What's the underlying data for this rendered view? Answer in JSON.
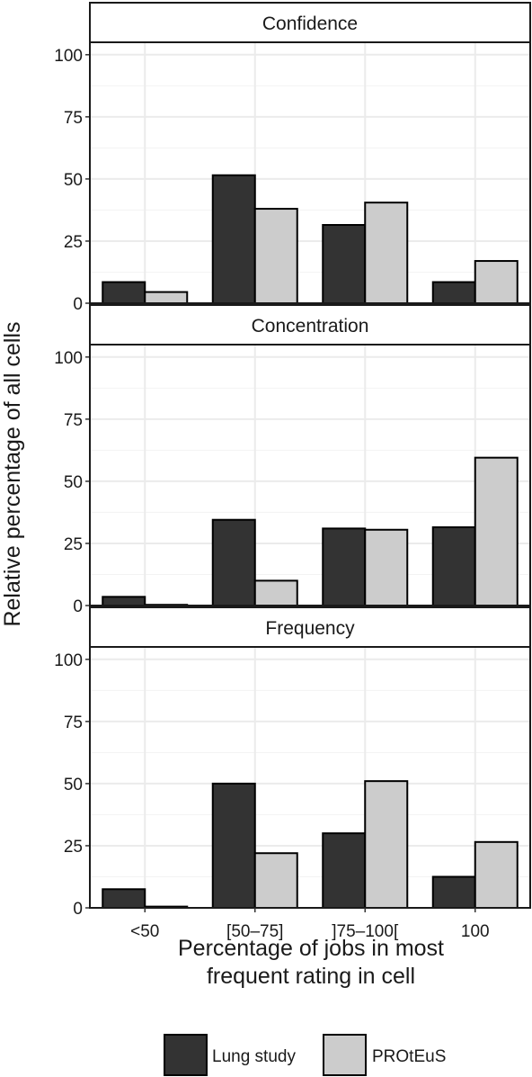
{
  "chart_data": {
    "type": "bar",
    "categories": [
      "<50",
      "[50–75]",
      "]75–100[",
      "100"
    ],
    "xlabel": "Percentage of jobs in most frequent rating in cell",
    "xlabel_lines": [
      "Percentage of jobs in most",
      "frequent rating in cell"
    ],
    "ylabel": "Relative percentage of all cells",
    "ylim": [
      0,
      105
    ],
    "yticks": [
      0,
      25,
      50,
      75,
      100
    ],
    "grid": true,
    "legend_position": "bottom",
    "colors": {
      "Lung study": "#333333",
      "PROtEuS": "#cccccc",
      "grid": "#ebebeb",
      "strip": "#ffffff"
    },
    "series_names": [
      "Lung study",
      "PROtEuS"
    ],
    "panels": [
      {
        "title": "Confidence",
        "series": [
          {
            "name": "Lung study",
            "values": [
              8.5,
              51.5,
              31.5,
              8.5
            ]
          },
          {
            "name": "PROtEuS",
            "values": [
              4.5,
              38,
              40.5,
              17
            ]
          }
        ]
      },
      {
        "title": "Concentration",
        "series": [
          {
            "name": "Lung study",
            "values": [
              3.5,
              34.5,
              31,
              31.5
            ]
          },
          {
            "name": "PROtEuS",
            "values": [
              0.3,
              10,
              30.5,
              59.5
            ]
          }
        ]
      },
      {
        "title": "Frequency",
        "series": [
          {
            "name": "Lung study",
            "values": [
              7.5,
              50,
              30,
              12.5
            ]
          },
          {
            "name": "PROtEuS",
            "values": [
              0.5,
              22,
              51,
              26.5
            ]
          }
        ]
      }
    ]
  }
}
